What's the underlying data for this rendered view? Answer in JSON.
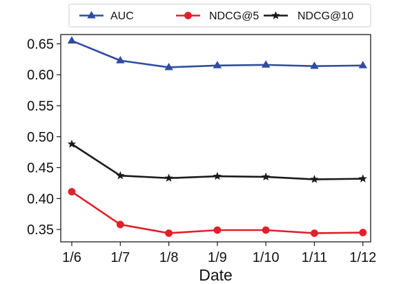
{
  "chart_data": {
    "type": "line",
    "title": "",
    "xlabel": "Date",
    "ylabel": "",
    "categories": [
      "1/6",
      "1/7",
      "1/8",
      "1/9",
      "1/10",
      "1/11",
      "1/12"
    ],
    "ylim": [
      0.33,
      0.665
    ],
    "yticks": [
      0.35,
      0.4,
      0.45,
      0.5,
      0.55,
      0.6,
      0.65
    ],
    "ytick_labels": [
      "0.35",
      "0.40",
      "0.45",
      "0.50",
      "0.55",
      "0.60",
      "0.65"
    ],
    "grid": false,
    "legend_position": "top-center, above plot",
    "series": [
      {
        "name": "AUC",
        "color": "#2f4da0",
        "marker": "triangle",
        "values": [
          0.655,
          0.623,
          0.612,
          0.615,
          0.616,
          0.614,
          0.615
        ]
      },
      {
        "name": "NDCG@5",
        "color": "#e0202a",
        "marker": "circle",
        "values": [
          0.411,
          0.358,
          0.344,
          0.349,
          0.349,
          0.344,
          0.345
        ]
      },
      {
        "name": "NDCG@10",
        "color": "#1a1a1a",
        "marker": "star",
        "values": [
          0.488,
          0.437,
          0.433,
          0.436,
          0.435,
          0.431,
          0.432
        ]
      }
    ]
  }
}
